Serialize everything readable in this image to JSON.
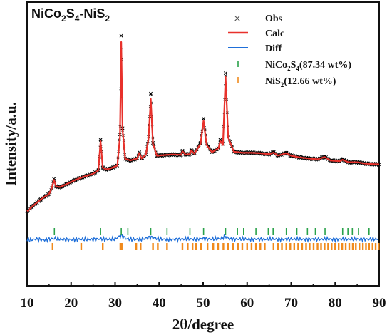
{
  "chart_data": {
    "type": "line",
    "title_main": "NiCo",
    "title_sub1": "2",
    "title_mid": "S",
    "title_sub2": "4",
    "title_tail": "-NiS",
    "title_sub3": "2",
    "xlabel": "2θ/degree",
    "ylabel": "Intensity/a.u.",
    "xlim": [
      10,
      90
    ],
    "x_ticks": [
      "10",
      "20",
      "30",
      "40",
      "50",
      "60",
      "70",
      "80",
      "90"
    ],
    "legend_position": "top-right",
    "series": [
      {
        "name": "Obs",
        "style": "scatter-x",
        "color": "#000000",
        "x": [
          10,
          11,
          12,
          13,
          14,
          15,
          15.6,
          16.1,
          16.6,
          17.5,
          19,
          21,
          23,
          25,
          26.2,
          26.7,
          27.2,
          28,
          29,
          30.5,
          31.1,
          31.4,
          31.7,
          32.3,
          33.5,
          35,
          35.5,
          36,
          37,
          37.6,
          38.1,
          38.6,
          39.5,
          41,
          43,
          45,
          45.3,
          46,
          47,
          47.3,
          48,
          49.4,
          50.1,
          50.8,
          52,
          53.5,
          53.9,
          54.5,
          55.1,
          55.7,
          57,
          59,
          61,
          63,
          65,
          66,
          67,
          68.9,
          70,
          72,
          74,
          76,
          77.6,
          79,
          81,
          81.7,
          83,
          85,
          87,
          89,
          90
        ],
        "y": [
          0.5,
          2.4,
          4.2,
          5.9,
          7.4,
          8.7,
          11.5,
          15.9,
          12.2,
          12.0,
          13.4,
          15.4,
          17.0,
          18.3,
          20.0,
          34.6,
          21.2,
          20.4,
          20.9,
          22.2,
          37.0,
          84.0,
          40.0,
          25.4,
          24.7,
          25.6,
          28.6,
          25.6,
          27.5,
          36.0,
          56.5,
          33.0,
          26.9,
          27.2,
          27.5,
          27.3,
          29.3,
          27.4,
          27.7,
          29.8,
          27.9,
          33.0,
          44.5,
          32.5,
          28.6,
          30.5,
          34.5,
          32.5,
          66.2,
          36.0,
          28.8,
          28.3,
          28.3,
          28.1,
          27.6,
          28.6,
          27.0,
          28.3,
          26.9,
          26.1,
          25.6,
          25.2,
          26.5,
          24.6,
          24.3,
          25.2,
          23.8,
          23.8,
          23.1,
          22.9,
          22.8
        ]
      },
      {
        "name": "Calc",
        "style": "line",
        "color": "#e8312b",
        "x": [
          10,
          11,
          12,
          13,
          14,
          15,
          15.6,
          16.1,
          16.6,
          17.5,
          19,
          21,
          23,
          25,
          26.2,
          26.7,
          27.2,
          28,
          29,
          30.5,
          31.1,
          31.4,
          31.7,
          32.3,
          33.5,
          35,
          35.5,
          36,
          37,
          37.6,
          38.1,
          38.6,
          39.5,
          41,
          43,
          45,
          45.3,
          46,
          47,
          47.3,
          48,
          49.4,
          50.1,
          50.8,
          52,
          53.5,
          53.9,
          54.5,
          55.1,
          55.7,
          57,
          59,
          61,
          63,
          65,
          66,
          67,
          68.9,
          70,
          72,
          74,
          76,
          77.6,
          79,
          81,
          81.7,
          83,
          85,
          87,
          89,
          90
        ],
        "y": [
          0.5,
          2.4,
          4.2,
          5.9,
          7.4,
          8.7,
          11.5,
          15.4,
          12.2,
          12.0,
          13.4,
          15.4,
          17.0,
          18.3,
          20.0,
          33.8,
          21.2,
          20.4,
          20.9,
          22.2,
          36.0,
          81.0,
          39.0,
          25.4,
          24.7,
          25.6,
          28.2,
          25.6,
          27.5,
          35.0,
          54.0,
          32.5,
          26.9,
          27.2,
          27.5,
          27.3,
          29.0,
          27.4,
          27.7,
          29.5,
          27.9,
          32.5,
          43.6,
          32.0,
          28.6,
          30.5,
          34.0,
          32.0,
          64.5,
          35.5,
          28.8,
          28.3,
          28.3,
          28.1,
          27.6,
          28.4,
          27.0,
          28.1,
          26.9,
          26.1,
          25.6,
          25.2,
          26.3,
          24.6,
          24.3,
          25.0,
          23.8,
          23.8,
          23.1,
          22.9,
          22.8
        ]
      },
      {
        "name": "Diff",
        "style": "line",
        "color": "#1f6fd9",
        "x": [
          10,
          12,
          14,
          16,
          18,
          20,
          22,
          24,
          26,
          27,
          28,
          30,
          31.4,
          32.5,
          34,
          36,
          38.1,
          40,
          42,
          44,
          46,
          48,
          50,
          52,
          54,
          55.1,
          56,
          58,
          60,
          62,
          64,
          66,
          68,
          70,
          72,
          74,
          76,
          78,
          80,
          82,
          84,
          86,
          88,
          90
        ],
        "y": [
          -13.5,
          -12.8,
          -13.2,
          -12.5,
          -13.0,
          -13.1,
          -12.9,
          -13.0,
          -12.8,
          -12.6,
          -13.0,
          -12.7,
          -11.0,
          -12.6,
          -13.0,
          -12.9,
          -11.8,
          -12.8,
          -13.0,
          -12.9,
          -12.7,
          -12.9,
          -12.5,
          -12.8,
          -12.6,
          -11.4,
          -12.7,
          -12.8,
          -12.9,
          -12.8,
          -12.9,
          -12.8,
          -12.9,
          -12.8,
          -12.9,
          -12.8,
          -12.9,
          -12.8,
          -12.9,
          -12.8,
          -12.9,
          -12.8,
          -12.9,
          -12.8
        ]
      }
    ],
    "reflections": [
      {
        "name_main": "NiCo",
        "name_sub": "2",
        "name_mid": "S",
        "name_sub2": "4",
        "name_tail": "(87.34 wt%)",
        "color": "#2aa24a",
        "positions": [
          16.2,
          26.7,
          31.4,
          32.9,
          38.1,
          41.8,
          47.0,
          50.1,
          55.1,
          57.8,
          59.2,
          62.0,
          64.8,
          65.9,
          68.9,
          71.3,
          73.7,
          75.5,
          77.7,
          81.7,
          82.9,
          83.9,
          85.3,
          87.7
        ]
      },
      {
        "name_main": "NiS",
        "name_sub": "2",
        "name_tail": "(12.66 wt%)",
        "color": "#f08a1c",
        "positions": [
          15.8,
          22.3,
          27.2,
          31.2,
          31.5,
          34.8,
          35.8,
          38.6,
          39.7,
          41.8,
          45.3,
          46.5,
          47.6,
          48.4,
          49.5,
          51.0,
          52.3,
          53.4,
          54.6,
          55.7,
          56.8,
          57.9,
          58.9,
          60.0,
          61.0,
          62.0,
          63.0,
          64.0,
          66.0,
          67.0,
          67.9,
          68.9,
          69.8,
          70.7,
          71.6,
          72.5,
          73.4,
          74.2,
          75.1,
          76.0,
          76.8,
          77.6,
          78.4,
          79.2,
          80.0,
          80.8,
          81.6,
          82.4,
          83.2,
          84.0,
          84.7,
          85.5,
          86.3,
          87.0,
          87.7,
          88.5,
          89.2,
          89.9
        ]
      }
    ]
  }
}
